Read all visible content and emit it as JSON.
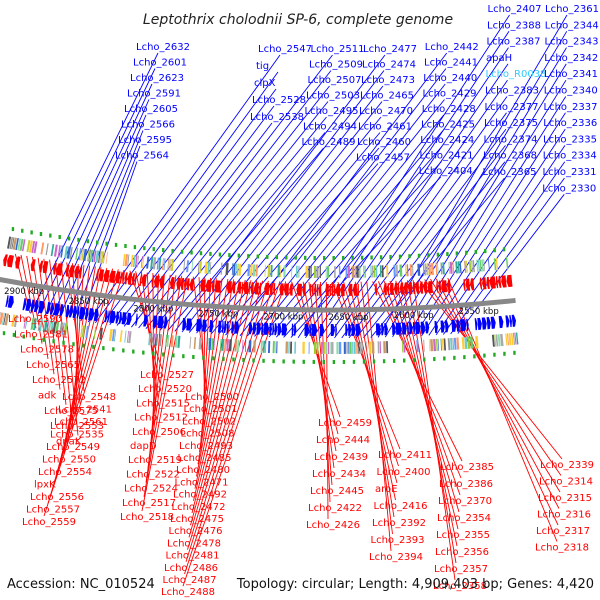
{
  "title": "Leptothrix cholodnii SP-6, complete genome",
  "accession": "Accession: NC_010524",
  "summary": "Topology: circular; Length: 4,909,403 bp; Genes: 4,420",
  "colors": {
    "forward": "#0000ff",
    "reverse": "#ff0000",
    "rna": "#33ccff",
    "backbone": "#888888",
    "tick_dots": "#22aa22"
  },
  "scale_ticks": [
    "2900 kbp",
    "2850 kbp",
    "2800 kbp",
    "2750 kbp",
    "2700 kbp",
    "2650 kbp",
    "2600 kbp",
    "2550 kbp"
  ],
  "forward_labels": [
    "Lcho_2632",
    "Lcho_2601",
    "Lcho_2623",
    "Lcho_2591",
    "Lcho_2605",
    "Lcho_2566",
    "Lcho_2595",
    "Lcho_2564",
    "Lcho_2547",
    "tig",
    "clpX",
    "Lcho_2528",
    "Lcho_2538",
    "Lcho_2511",
    "Lcho_2509",
    "Lcho_2507",
    "Lcho_2503",
    "Lcho_2495",
    "Lcho_2494",
    "Lcho_2489",
    "Lcho_2477",
    "Lcho_2474",
    "Lcho_2473",
    "Lcho_2465",
    "Lcho_2470",
    "Lcho_2461",
    "Lcho_2460",
    "Lcho_2457",
    "Lcho_2442",
    "Lcho_2441",
    "Lcho_2440",
    "Lcho_2429",
    "Lcho_2428",
    "Lcho_2425",
    "Lcho_2424",
    "Lcho_2421",
    "Lcho_2404",
    "Lcho_2407",
    "Lcho_2388",
    "Lcho_2387",
    "apaH",
    "Lcho_R0038",
    "Lcho_2383",
    "Lcho_2377",
    "Lcho_2375",
    "Lcho_2374",
    "Lcho_2368",
    "Lcho_2365",
    "Lcho_2361",
    "Lcho_2344",
    "Lcho_2343",
    "Lcho_2342",
    "Lcho_2341",
    "Lcho_2340",
    "Lcho_2337",
    "Lcho_2336",
    "Lcho_2335",
    "Lcho_2334",
    "Lcho_2331",
    "Lcho_2330"
  ],
  "reverse_labels": [
    "Lcho_2590",
    "Lcho_2581",
    "Lcho_2578",
    "Lcho_2565",
    "Lcho_2572",
    "adk",
    "Lcho_2575",
    "Lcho_2553",
    "dnaK",
    "Lcho_2548",
    "Lcho_2541",
    "Lcho_2561",
    "Lcho_2535",
    "Lcho_2549",
    "Lcho_2550",
    "Lcho_2554",
    "lpxK",
    "Lcho_2556",
    "Lcho_2557",
    "Lcho_2559",
    "Lcho_2527",
    "Lcho_2520",
    "Lcho_2515",
    "Lcho_2512",
    "Lcho_2506",
    "dapD",
    "Lcho_2519",
    "Lcho_2522",
    "Lcho_2524",
    "Lcho_2517",
    "Lcho_2518",
    "Lcho_2500",
    "Lcho_2501",
    "Lcho_2502",
    "Lcho_2508",
    "Lcho_2493",
    "Lcho_2485",
    "Lcho_2480",
    "Lcho_2471",
    "Lcho_2492",
    "Lcho_2472",
    "Lcho_2475",
    "Lcho_2476",
    "Lcho_2478",
    "Lcho_2481",
    "Lcho_2486",
    "Lcho_2487",
    "Lcho_2488",
    "Lcho_2459",
    "Lcho_2444",
    "Lcho_2439",
    "Lcho_2434",
    "Lcho_2445",
    "Lcho_2422",
    "Lcho_2426",
    "Lcho_2411",
    "Lcho_2400",
    "aroE",
    "Lcho_2416",
    "Lcho_2392",
    "Lcho_2393",
    "Lcho_2394",
    "Lcho_2385",
    "Lcho_2386",
    "Lcho_2370",
    "Lcho_2354",
    "Lcho_2355",
    "Lcho_2356",
    "Lcho_2357",
    "Lcho_2358",
    "Lcho_2339",
    "Lcho_2314",
    "Lcho_2315",
    "Lcho_2316",
    "Lcho_2317",
    "Lcho_2318"
  ]
}
